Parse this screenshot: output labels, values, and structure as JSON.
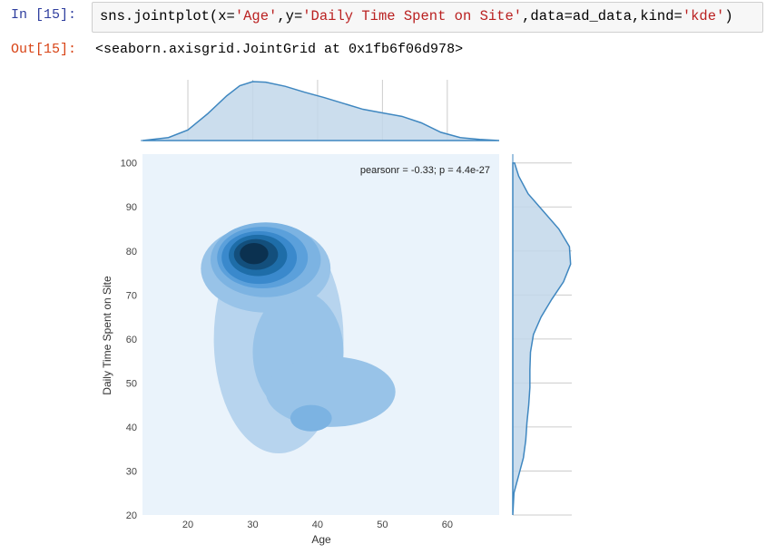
{
  "cell": {
    "in_prompt": "In [15]:",
    "code": {
      "p1": "sns.jointplot(x=",
      "s1": "'Age'",
      "p2": ",y=",
      "s2": "'Daily Time Spent on Site'",
      "p3": ",data=ad_data,kind=",
      "s3": "'kde'",
      "p4": ")"
    },
    "out_prompt": "Out[15]:",
    "output": "<seaborn.axisgrid.JointGrid at 0x1fb6f06d978>"
  },
  "chart_data": {
    "type": "kde-joint",
    "annotation": "pearsonr = -0.33; p = 4.4e-27",
    "xlabel": "Age",
    "ylabel": "Daily Time Spent on Site",
    "xlim": [
      13,
      68
    ],
    "ylim": [
      20,
      102
    ],
    "x_ticks": [
      20,
      30,
      40,
      50,
      60
    ],
    "y_ticks": [
      20,
      30,
      40,
      50,
      60,
      70,
      80,
      90,
      100
    ],
    "grid": true,
    "colors": {
      "background": "#eaf3fb",
      "fill": "#c2d7ea",
      "line": "#3f87c0",
      "levels": [
        "#b7d4ee",
        "#98c3e8",
        "#7cb3e2",
        "#5ba0db",
        "#3a89cc",
        "#1e6da8",
        "#134f7c",
        "#0b3150",
        "#020b14"
      ]
    },
    "joint_levels": [
      {
        "level": 1,
        "blobs": [
          {
            "cx": 34,
            "cy": 60,
            "rx": 10,
            "ry": 26
          }
        ]
      },
      {
        "level": 2,
        "blobs": [
          {
            "cx": 32,
            "cy": 76,
            "rx": 10,
            "ry": 10
          },
          {
            "cx": 37,
            "cy": 57,
            "rx": 7,
            "ry": 14
          },
          {
            "cx": 42,
            "cy": 48,
            "rx": 10,
            "ry": 8
          }
        ]
      },
      {
        "level": 3,
        "blobs": [
          {
            "cx": 32,
            "cy": 78,
            "rx": 8.5,
            "ry": 8.5
          },
          {
            "cx": 39,
            "cy": 42,
            "rx": 3.2,
            "ry": 3
          }
        ]
      },
      {
        "level": 4,
        "blobs": [
          {
            "cx": 31.5,
            "cy": 78.5,
            "rx": 7,
            "ry": 7
          }
        ]
      },
      {
        "level": 5,
        "blobs": [
          {
            "cx": 31,
            "cy": 78.5,
            "rx": 5.8,
            "ry": 6
          }
        ]
      },
      {
        "level": 6,
        "blobs": [
          {
            "cx": 30.8,
            "cy": 79,
            "rx": 4.5,
            "ry": 4.7
          }
        ]
      },
      {
        "level": 7,
        "blobs": [
          {
            "cx": 30.5,
            "cy": 79.2,
            "rx": 3.4,
            "ry": 3.5
          }
        ]
      },
      {
        "level": 8,
        "blobs": [
          {
            "cx": 30.2,
            "cy": 79.4,
            "rx": 2.2,
            "ry": 2.4
          }
        ]
      }
    ],
    "marginal_x": {
      "x": [
        13,
        17,
        20,
        23,
        26,
        28,
        30,
        32,
        35,
        38,
        41,
        44,
        47,
        50,
        53,
        56,
        59,
        62,
        65,
        68
      ],
      "density": [
        0.0,
        0.05,
        0.18,
        0.45,
        0.76,
        0.93,
        1.0,
        0.99,
        0.92,
        0.82,
        0.73,
        0.63,
        0.53,
        0.47,
        0.41,
        0.3,
        0.14,
        0.05,
        0.02,
        0.0
      ]
    },
    "marginal_y": {
      "y": [
        20,
        25,
        29,
        33,
        37,
        41,
        45,
        49,
        53,
        57,
        61,
        65,
        69,
        73,
        77,
        81,
        85,
        89,
        93,
        97,
        100
      ],
      "density": [
        0.0,
        0.02,
        0.1,
        0.18,
        0.22,
        0.24,
        0.27,
        0.29,
        0.29,
        0.3,
        0.35,
        0.48,
        0.66,
        0.86,
        0.98,
        0.96,
        0.78,
        0.52,
        0.26,
        0.1,
        0.03
      ]
    }
  }
}
